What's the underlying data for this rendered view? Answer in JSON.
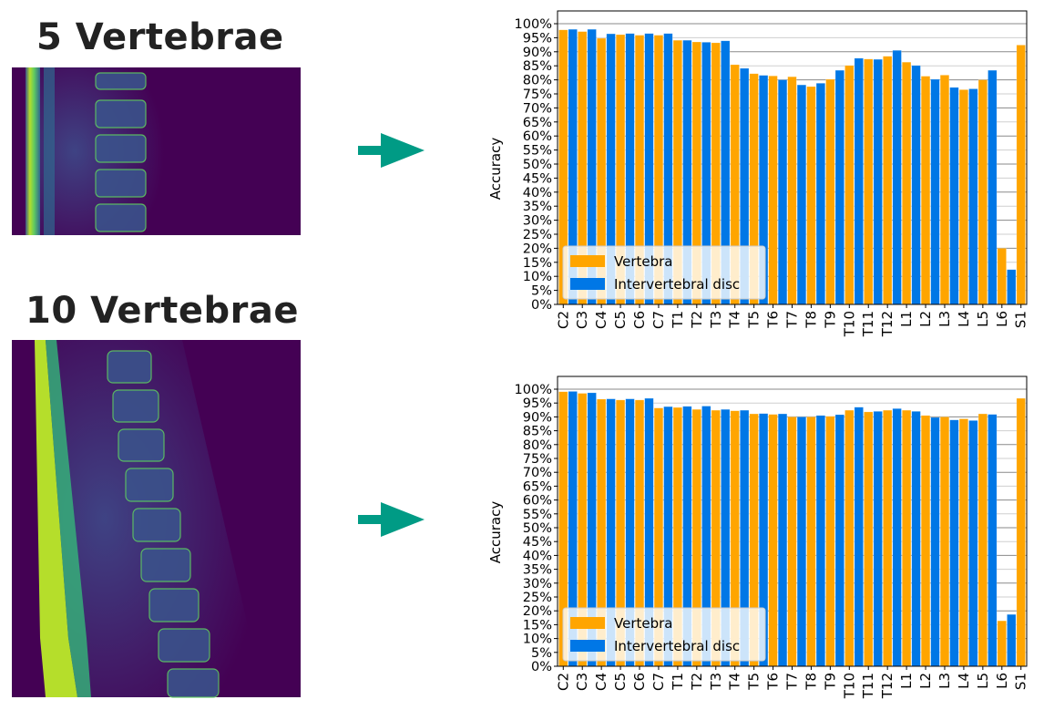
{
  "panels": [
    {
      "title": "5 Vertebrae"
    },
    {
      "title": "10 Vertebrae"
    }
  ],
  "colors": {
    "vertebra": "#FFA500",
    "disc": "#0077E6",
    "arrow": "#009B85",
    "mri_bg": "#440154"
  },
  "chart_data": [
    {
      "type": "bar",
      "ylabel": "Accuracy",
      "ylim": [
        0,
        100
      ],
      "yticks": [
        "0%",
        "5%",
        "10%",
        "15%",
        "20%",
        "25%",
        "30%",
        "35%",
        "40%",
        "45%",
        "50%",
        "55%",
        "60%",
        "65%",
        "70%",
        "75%",
        "80%",
        "85%",
        "90%",
        "95%",
        "100%"
      ],
      "grid": true,
      "legend_placement": "lower-left",
      "categories": [
        "C2",
        "C3",
        "C4",
        "C5",
        "C6",
        "C7",
        "T1",
        "T2",
        "T3",
        "T4",
        "T5",
        "T6",
        "T7",
        "T8",
        "T9",
        "T10",
        "T11",
        "T12",
        "L1",
        "L2",
        "L3",
        "L4",
        "L5",
        "L6",
        "S1"
      ],
      "series": [
        {
          "name": "Vertebra",
          "color": "#FFA500",
          "values": [
            97.8,
            97.2,
            94.8,
            96.1,
            95.9,
            95.9,
            94.1,
            93.5,
            93.2,
            85.4,
            82.2,
            81.4,
            81.1,
            77.6,
            80.2,
            85.1,
            87.4,
            88.4,
            86.3,
            81.3,
            81.7,
            76.5,
            80.0,
            20.0,
            92.4
          ]
        },
        {
          "name": "Intervertebral disc",
          "color": "#0077E6",
          "values": [
            98.0,
            98.0,
            96.4,
            96.5,
            96.5,
            96.5,
            94.1,
            93.4,
            93.9,
            84.1,
            81.6,
            80.0,
            78.2,
            78.8,
            83.4,
            87.7,
            87.3,
            90.5,
            85.1,
            80.2,
            77.3,
            76.8,
            83.4,
            12.4,
            null
          ]
        }
      ]
    },
    {
      "type": "bar",
      "ylabel": "Accuracy",
      "ylim": [
        0,
        100
      ],
      "yticks": [
        "0%",
        "5%",
        "10%",
        "15%",
        "20%",
        "25%",
        "30%",
        "35%",
        "40%",
        "45%",
        "50%",
        "55%",
        "60%",
        "65%",
        "70%",
        "75%",
        "80%",
        "85%",
        "90%",
        "95%",
        "100%"
      ],
      "grid": true,
      "legend_placement": "lower-left",
      "categories": [
        "C2",
        "C3",
        "C4",
        "C5",
        "C6",
        "C7",
        "T1",
        "T2",
        "T3",
        "T4",
        "T5",
        "T6",
        "T7",
        "T8",
        "T9",
        "T10",
        "T11",
        "T12",
        "L1",
        "L2",
        "L3",
        "L4",
        "L5",
        "L6",
        "S1"
      ],
      "series": [
        {
          "name": "Vertebra",
          "color": "#FFA500",
          "values": [
            99.1,
            98.5,
            96.4,
            96.1,
            96.1,
            93.2,
            93.4,
            92.7,
            92.4,
            92.2,
            91.1,
            90.9,
            90.0,
            90.0,
            90.2,
            92.4,
            91.8,
            92.4,
            92.4,
            90.5,
            90.0,
            89.3,
            91.1,
            16.4,
            96.7
          ]
        },
        {
          "name": "Intervertebral disc",
          "color": "#0077E6",
          "values": [
            99.2,
            98.7,
            96.5,
            96.5,
            96.7,
            93.7,
            93.8,
            93.9,
            92.7,
            92.4,
            91.2,
            91.1,
            90.0,
            90.5,
            90.8,
            93.5,
            92.0,
            93.0,
            92.0,
            89.8,
            88.9,
            88.7,
            90.9,
            18.7,
            null
          ]
        }
      ]
    }
  ]
}
